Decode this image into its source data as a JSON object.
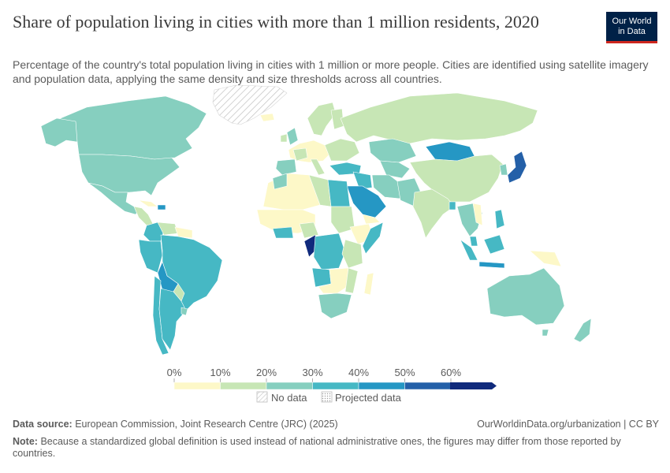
{
  "header": {
    "title": "Share of population living in cities with more than 1 million residents, 2020",
    "subtitle": "Percentage of the country's total population living in cities with 1 million or more people. Cities are identified using satellite imagery and population data, applying the same density and size thresholds across all countries.",
    "logo_line1": "Our World",
    "logo_line2": "in Data"
  },
  "legend": {
    "ticks": [
      "0%",
      "10%",
      "20%",
      "30%",
      "40%",
      "50%",
      "60%"
    ],
    "colors": [
      "#fdf8c8",
      "#c7e6b5",
      "#86cfbf",
      "#46b8c4",
      "#2597c4",
      "#2460a8",
      "#102a7c"
    ],
    "no_data_label": "No data",
    "projected_label": "Projected data"
  },
  "map_data": {
    "variable": "Share of population living in cities with more than 1 million residents",
    "year": 2020,
    "unit": "%",
    "bins": [
      0,
      10,
      20,
      30,
      40,
      50,
      60
    ],
    "approx_shares": {
      "Japan": 55,
      "Saudi Arabia": 50,
      "Mongolia": 45,
      "Congo": 60,
      "Bolivia": 45,
      "Australia": 25,
      "Canada": 25,
      "United States": 25,
      "Brazil": 35,
      "Argentina": 35,
      "Russia": 15,
      "China": 15,
      "India": 15,
      "Egypt": 35,
      "Indonesia": 35,
      "Greenland": null
    }
  },
  "footer": {
    "source_label": "Data source:",
    "source_text": "European Commission, Joint Research Centre (JRC) (2025)",
    "url": "OurWorldinData.org/urbanization | CC BY",
    "note_label": "Note:",
    "note_text": "Because a standardized global definition is used instead of national administrative ones, the figures may differ from those reported by countries."
  }
}
